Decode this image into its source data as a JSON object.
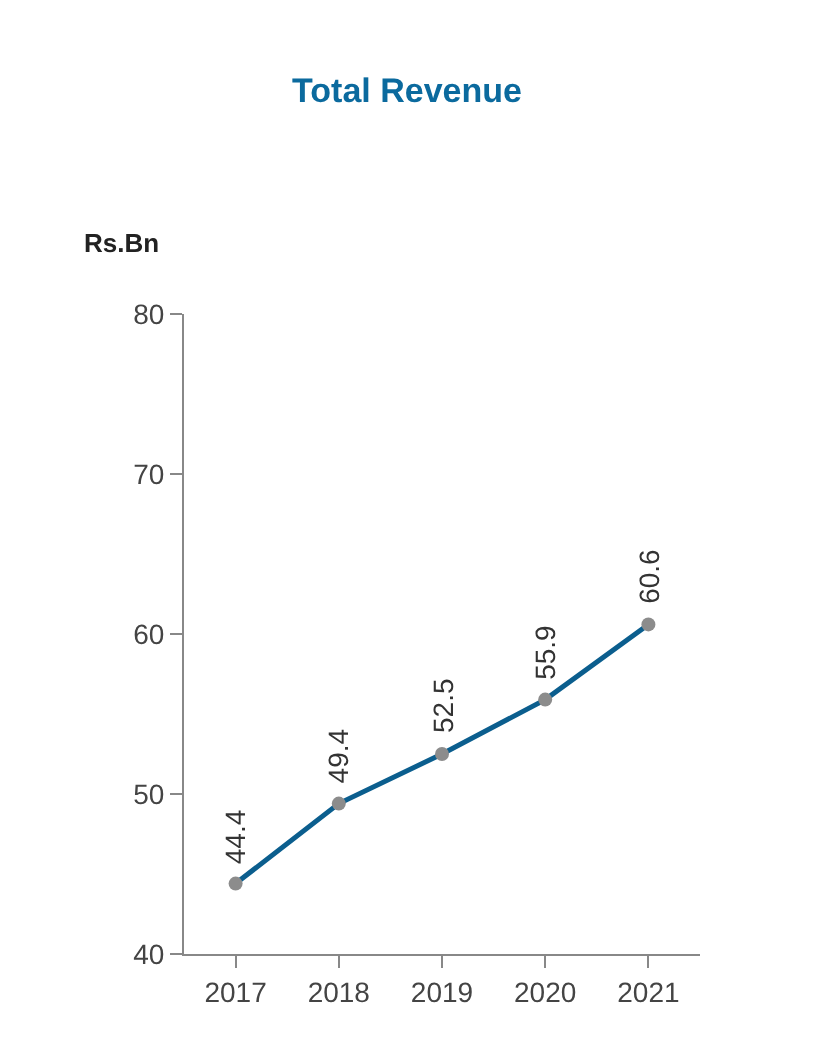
{
  "chart_data": {
    "type": "line",
    "title": "Total Revenue",
    "ylabel": "Rs.Bn",
    "categories": [
      "2017",
      "2018",
      "2019",
      "2020",
      "2021"
    ],
    "series": [
      {
        "color": "#0b5e8e",
        "values": [
          44.4,
          49.4,
          52.5,
          55.9,
          60.6
        ]
      }
    ],
    "ylim": [
      40,
      80
    ],
    "yticks": [
      40,
      50,
      60,
      70,
      80
    ],
    "marker": "circle",
    "line_style": "solid",
    "data_labels": true
  }
}
